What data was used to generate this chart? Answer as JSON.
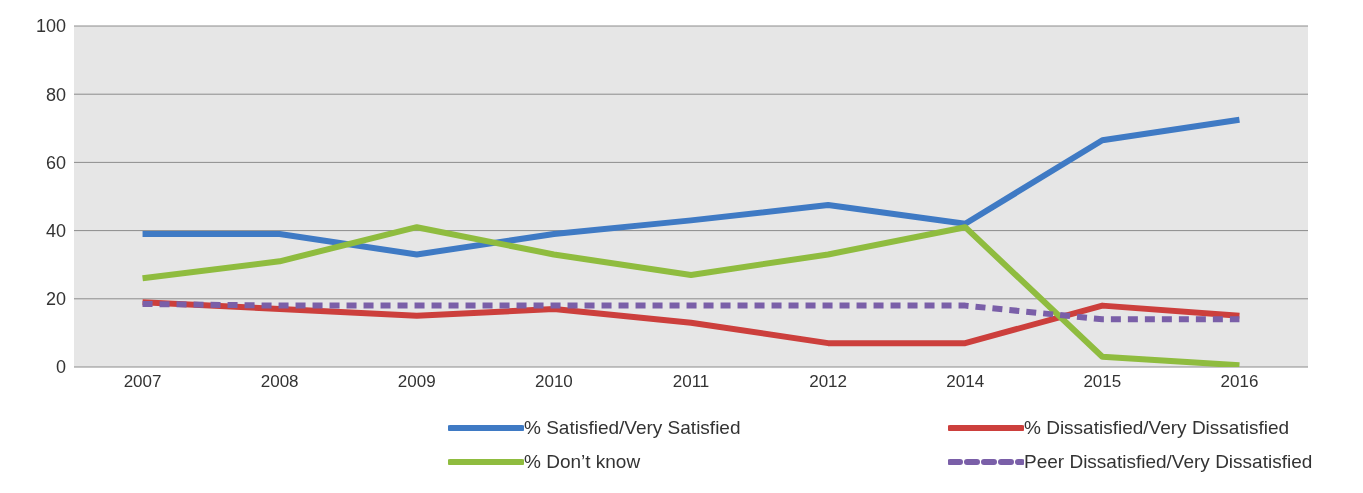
{
  "chart_data": {
    "type": "line",
    "categories": [
      "2007",
      "2008",
      "2009",
      "2010",
      "2011",
      "2012",
      "2014",
      "2015",
      "2016"
    ],
    "series": [
      {
        "name": "% Satisfied/Very Satisfied",
        "color": "#3f7ac4",
        "values": [
          39,
          39,
          33,
          39,
          43,
          47.5,
          42,
          66.5,
          72.5
        ]
      },
      {
        "name": "% Dissatisfied/Very Dissatisfied",
        "color": "#cc3f3c",
        "values": [
          19,
          17,
          15,
          17,
          13,
          7,
          7,
          18,
          15
        ]
      },
      {
        "name": "% Don’t know",
        "color": "#8fbc3f",
        "values": [
          26,
          31,
          41,
          33,
          27,
          33,
          41,
          3,
          0.5
        ]
      },
      {
        "name": "Peer Dissatisfied/Very Dissatisfied",
        "color": "#7a5fa8",
        "values": [
          18.5,
          18,
          18,
          18,
          18,
          18,
          18,
          14,
          14
        ],
        "line_style": "dashed"
      }
    ],
    "ylim": [
      0,
      100
    ],
    "yticks": [
      0,
      20,
      40,
      60,
      80,
      100
    ],
    "grid": "y",
    "legend": "bottom",
    "marker": "none"
  }
}
